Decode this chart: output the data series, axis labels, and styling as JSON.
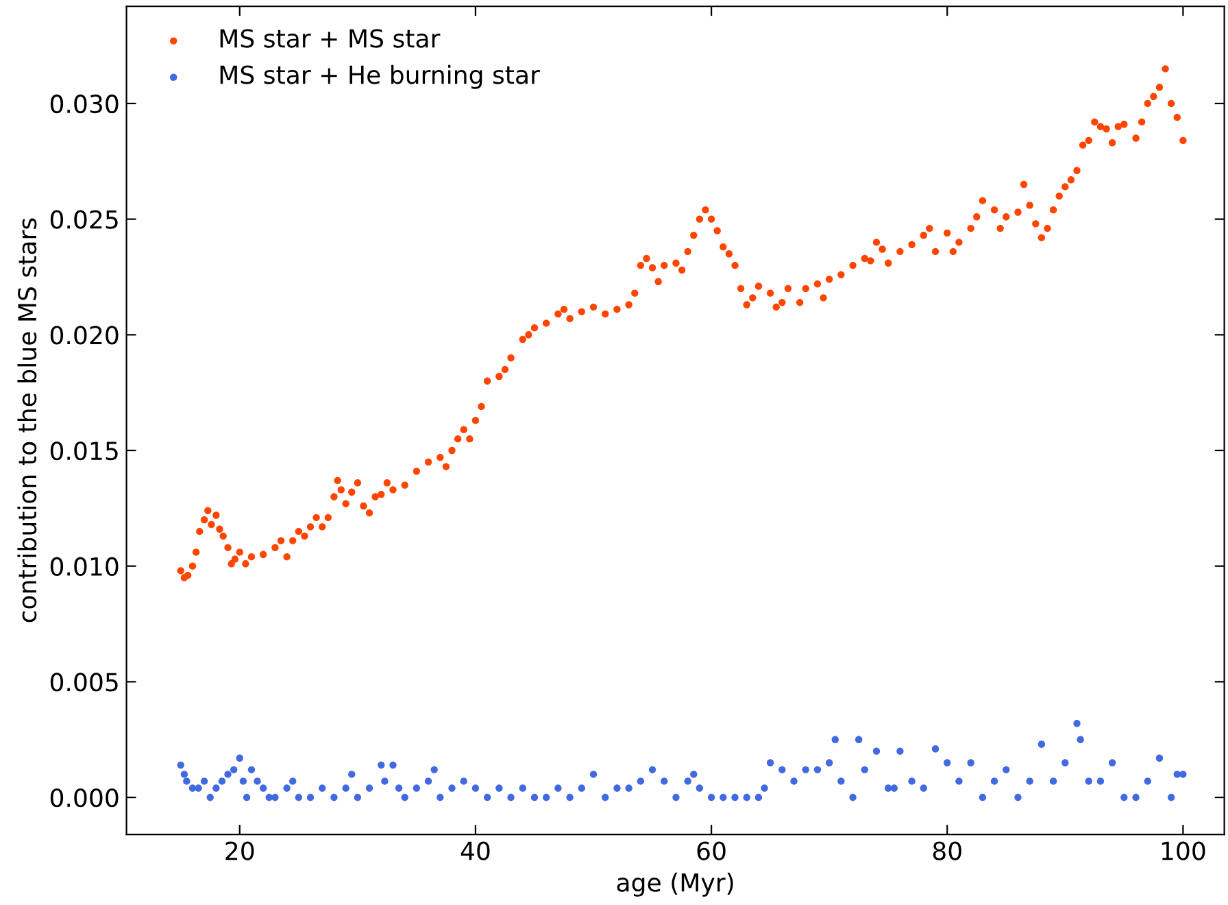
{
  "chart_data": {
    "type": "scatter",
    "xlabel": "age (Myr)",
    "ylabel": "contribution to the blue MS stars",
    "xlim": [
      10.4,
      103.5
    ],
    "ylim": [
      -0.0016,
      0.0342
    ],
    "xticks": [
      20,
      40,
      60,
      80,
      100
    ],
    "yticks": [
      {
        "value": 0,
        "label": "0.000"
      },
      {
        "value": 0.005,
        "label": "0.005"
      },
      {
        "value": 0.01,
        "label": "0.010"
      },
      {
        "value": 0.015,
        "label": "0.015"
      },
      {
        "value": 0.02,
        "label": "0.020"
      },
      {
        "value": 0.025,
        "label": "0.025"
      },
      {
        "value": 0.03,
        "label": "0.030"
      }
    ],
    "grid": false,
    "legend": "top left",
    "marker": "circle",
    "series": [
      {
        "name": "MS star + MS star",
        "color": "#ff4500",
        "x": [
          15,
          15.3,
          15.6,
          16,
          16.3,
          16.6,
          17,
          17.3,
          17.6,
          18,
          18.3,
          18.6,
          19,
          19.3,
          19.6,
          20,
          20.5,
          21,
          22,
          23,
          23.5,
          24,
          24.5,
          25,
          25.5,
          26,
          26.5,
          27,
          27.5,
          28,
          28.3,
          28.6,
          29,
          29.5,
          30,
          30.5,
          31,
          31.5,
          32,
          32.5,
          33,
          34,
          35,
          36,
          37,
          37.5,
          38,
          38.5,
          39,
          39.5,
          40,
          40.5,
          41,
          42,
          42.5,
          43,
          44,
          44.5,
          45,
          46,
          47,
          47.5,
          48,
          49,
          50,
          51,
          52,
          53,
          53.5,
          54,
          54.5,
          55,
          55.5,
          56,
          57,
          57.5,
          58,
          58.5,
          59,
          59.5,
          60,
          60.5,
          61,
          61.5,
          62,
          62.5,
          63,
          63.5,
          64,
          65,
          65.5,
          66,
          66.5,
          67.5,
          68,
          69,
          69.5,
          70,
          71,
          72,
          73,
          73.5,
          74,
          74.5,
          75,
          76,
          77,
          78,
          78.5,
          79,
          80,
          80.5,
          81,
          82,
          82.5,
          83,
          84,
          84.5,
          85,
          86,
          86.5,
          87,
          87.5,
          88,
          88.5,
          89,
          89.5,
          90,
          90.5,
          91,
          91.5,
          92,
          92.5,
          93,
          93.5,
          94,
          94.5,
          95,
          96,
          96.5,
          97,
          97.5,
          98,
          98.5,
          99,
          99.5,
          100
        ],
        "values": [
          0.0098,
          0.0095,
          0.0096,
          0.01,
          0.0106,
          0.0115,
          0.012,
          0.0124,
          0.0118,
          0.0122,
          0.0116,
          0.0113,
          0.0108,
          0.0101,
          0.0103,
          0.0106,
          0.0101,
          0.0104,
          0.0105,
          0.0108,
          0.0111,
          0.0104,
          0.0111,
          0.0115,
          0.0113,
          0.0117,
          0.0121,
          0.0117,
          0.0121,
          0.013,
          0.0137,
          0.0133,
          0.0127,
          0.0132,
          0.0136,
          0.0126,
          0.0123,
          0.013,
          0.0131,
          0.0136,
          0.0133,
          0.0135,
          0.0141,
          0.0145,
          0.0147,
          0.0143,
          0.015,
          0.0155,
          0.0159,
          0.0155,
          0.0163,
          0.0169,
          0.018,
          0.0182,
          0.0185,
          0.019,
          0.0198,
          0.02,
          0.0203,
          0.0205,
          0.0209,
          0.0211,
          0.0207,
          0.021,
          0.0212,
          0.0209,
          0.0211,
          0.0213,
          0.0218,
          0.023,
          0.0233,
          0.0229,
          0.0223,
          0.023,
          0.0231,
          0.0228,
          0.0236,
          0.0243,
          0.025,
          0.0254,
          0.025,
          0.0245,
          0.0238,
          0.0235,
          0.023,
          0.022,
          0.0213,
          0.0216,
          0.0221,
          0.0218,
          0.0212,
          0.0214,
          0.022,
          0.0214,
          0.022,
          0.0222,
          0.0216,
          0.0224,
          0.0226,
          0.023,
          0.0233,
          0.0232,
          0.024,
          0.0237,
          0.0231,
          0.0236,
          0.0239,
          0.0243,
          0.0246,
          0.0236,
          0.0244,
          0.0236,
          0.024,
          0.0246,
          0.0251,
          0.0258,
          0.0254,
          0.0246,
          0.0251,
          0.0253,
          0.0265,
          0.0256,
          0.0248,
          0.0242,
          0.0246,
          0.0254,
          0.026,
          0.0264,
          0.0267,
          0.0271,
          0.0282,
          0.0284,
          0.0292,
          0.029,
          0.0289,
          0.0283,
          0.029,
          0.0291,
          0.0285,
          0.0292,
          0.03,
          0.0303,
          0.0307,
          0.0315,
          0.03,
          0.0294,
          0.0284
        ]
      },
      {
        "name": "MS star + He burning star",
        "color": "#4169e1",
        "x": [
          15,
          15.3,
          15.5,
          16,
          16.5,
          17,
          17.5,
          18,
          18.5,
          19,
          19.5,
          20,
          20.3,
          20.6,
          21,
          21.5,
          22,
          22.5,
          23,
          24,
          24.5,
          25,
          26,
          27,
          28,
          29,
          29.5,
          30,
          31,
          32,
          32.3,
          33,
          33.5,
          34,
          35,
          36,
          36.5,
          37,
          38,
          39,
          40,
          41,
          42,
          43,
          44,
          45,
          46,
          47,
          48,
          49,
          50,
          51,
          52,
          53,
          54,
          55,
          56,
          57,
          58,
          58.5,
          59,
          60,
          61,
          62,
          63,
          64,
          64.5,
          65,
          66,
          67,
          68,
          69,
          70,
          70.5,
          71,
          72,
          72.5,
          73,
          74,
          75,
          75.5,
          76,
          77,
          78,
          79,
          80,
          81,
          82,
          83,
          84,
          85,
          86,
          87,
          88,
          89,
          90,
          91,
          91.3,
          92,
          93,
          94,
          95,
          96,
          97,
          98,
          99,
          99.5,
          100
        ],
        "values": [
          0.0014,
          0.001,
          0.0007,
          0.0004,
          0.0004,
          0.0007,
          0.0,
          0.0004,
          0.0007,
          0.001,
          0.0012,
          0.0017,
          0.0007,
          0.0,
          0.0012,
          0.0007,
          0.0004,
          0.0,
          0.0,
          0.0004,
          0.0007,
          0.0,
          0.0,
          0.0004,
          0.0,
          0.0004,
          0.001,
          0.0,
          0.0004,
          0.0014,
          0.0007,
          0.0014,
          0.0004,
          0.0,
          0.0004,
          0.0007,
          0.0012,
          0.0,
          0.0004,
          0.0007,
          0.0004,
          0.0,
          0.0004,
          0.0,
          0.0004,
          0.0,
          0.0,
          0.0004,
          0.0,
          0.0004,
          0.001,
          0.0,
          0.0004,
          0.0004,
          0.0007,
          0.0012,
          0.0007,
          0.0,
          0.0007,
          0.001,
          0.0004,
          0.0,
          0.0,
          0.0,
          0.0,
          0.0,
          0.0004,
          0.0015,
          0.0012,
          0.0007,
          0.0012,
          0.0012,
          0.0015,
          0.0025,
          0.0007,
          0.0,
          0.0025,
          0.0012,
          0.002,
          0.0004,
          0.0004,
          0.002,
          0.0007,
          0.0004,
          0.0021,
          0.0015,
          0.0007,
          0.0015,
          0.0,
          0.0007,
          0.0012,
          0.0,
          0.0007,
          0.0023,
          0.0007,
          0.0015,
          0.0032,
          0.0025,
          0.0007,
          0.0007,
          0.0015,
          0.0,
          0.0,
          0.0007,
          0.0017,
          0.0,
          0.001,
          0.001
        ]
      }
    ]
  }
}
